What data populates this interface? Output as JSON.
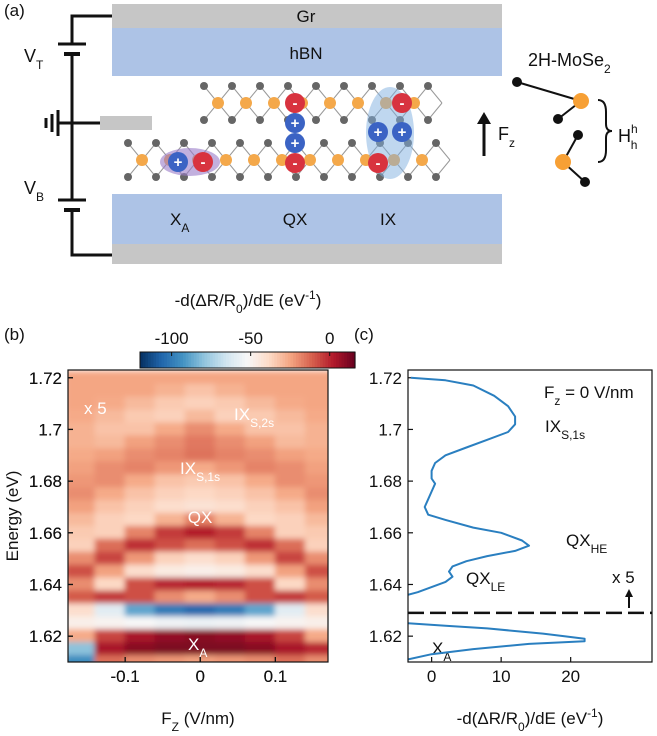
{
  "panel_a": {
    "label": "(a)",
    "top_layer": "Gr",
    "top_dielectric": "hBN",
    "top_gate": {
      "main": "V",
      "sub": "T"
    },
    "bottom_gate": {
      "main": "V",
      "sub": "B"
    },
    "excitons": [
      {
        "main": "X",
        "sub": "A"
      },
      {
        "main": "QX"
      },
      {
        "main": "IX"
      }
    ],
    "charges": {
      "plus": "+",
      "minus": "-"
    },
    "field": {
      "main": "F",
      "sub": "z"
    },
    "material": {
      "main": "2H-MoSe",
      "sub": "2"
    },
    "stacking": {
      "main": "H",
      "sup": "h",
      "sub": "h"
    }
  },
  "chart_data": [
    {
      "type": "heatmap",
      "label": "(b)",
      "x": [
        -0.16,
        -0.12,
        -0.08,
        -0.04,
        0,
        0.04,
        0.08,
        0.12,
        0.16
      ],
      "y": [
        1.72,
        1.715,
        1.71,
        1.705,
        1.7,
        1.695,
        1.69,
        1.685,
        1.68,
        1.675,
        1.67,
        1.665,
        1.66,
        1.655,
        1.65,
        1.645,
        1.64,
        1.635,
        1.63,
        1.625,
        1.62,
        1.615,
        1.61
      ],
      "values": [
        [
          -25,
          -25,
          -25,
          -25,
          -25,
          -25,
          -25,
          -25,
          -25
        ],
        [
          -25,
          -25,
          -25,
          -28,
          -32,
          -28,
          -25,
          -25,
          -25
        ],
        [
          -25,
          -26,
          -30,
          -34,
          -36,
          -34,
          -30,
          -26,
          -25
        ],
        [
          -26,
          -30,
          -34,
          -36,
          -30,
          -36,
          -34,
          -30,
          -26
        ],
        [
          -28,
          -32,
          -32,
          -26,
          -20,
          -26,
          -32,
          -32,
          -28
        ],
        [
          -28,
          -30,
          -24,
          -20,
          -16,
          -20,
          -24,
          -30,
          -28
        ],
        [
          -26,
          -24,
          -20,
          -18,
          -15,
          -18,
          -20,
          -24,
          -26
        ],
        [
          -24,
          -20,
          -18,
          -22,
          -26,
          -22,
          -18,
          -20,
          -24
        ],
        [
          -22,
          -20,
          -26,
          -32,
          -34,
          -32,
          -26,
          -20,
          -22
        ],
        [
          -20,
          -26,
          -32,
          -36,
          -38,
          -36,
          -32,
          -26,
          -20
        ],
        [
          -24,
          -32,
          -36,
          -40,
          -42,
          -40,
          -36,
          -32,
          -24
        ],
        [
          -30,
          -36,
          -38,
          -28,
          -18,
          -28,
          -38,
          -36,
          -30
        ],
        [
          -34,
          -36,
          -18,
          -4,
          2,
          -4,
          -18,
          -36,
          -34
        ],
        [
          -36,
          -14,
          -2,
          -8,
          -14,
          -8,
          -2,
          -14,
          -36
        ],
        [
          -20,
          -6,
          -22,
          -36,
          -40,
          -36,
          -22,
          -6,
          -20
        ],
        [
          -8,
          -24,
          -40,
          -46,
          -48,
          -46,
          -40,
          -24,
          -8
        ],
        [
          -20,
          -38,
          -8,
          0,
          2,
          0,
          -8,
          -38,
          -20
        ],
        [
          -10,
          -4,
          -8,
          -20,
          -26,
          -20,
          -8,
          -4,
          -10
        ],
        [
          -40,
          -60,
          -88,
          -100,
          -105,
          -100,
          -88,
          -60,
          -40
        ],
        [
          -48,
          -50,
          -52,
          -55,
          -56,
          -55,
          -52,
          -50,
          -48
        ],
        [
          -26,
          -6,
          4,
          8,
          10,
          8,
          4,
          -6,
          -26
        ],
        [
          -80,
          4,
          10,
          12,
          12,
          12,
          10,
          4,
          0
        ],
        [
          -95,
          -14,
          -20,
          -22,
          -24,
          -22,
          -20,
          -14,
          -20
        ]
      ],
      "xlim": [
        -0.176,
        0.17
      ],
      "ylim": [
        1.61,
        1.723
      ],
      "xticks": [
        -0.1,
        0,
        0.1
      ],
      "yticks": [
        1.62,
        1.64,
        1.66,
        1.68,
        1.7,
        1.72
      ],
      "xlabel": {
        "main": "F",
        "sub": "Z",
        "rest": " (V/nm)"
      },
      "ylabel": "Energy (eV)",
      "colorbar": {
        "label": [
          "-d(ΔR/R",
          {
            "sub": "0"
          },
          ")/dE (eV",
          {
            "sup": "-1"
          },
          ")"
        ],
        "lim": [
          -120,
          16
        ],
        "ticks": [
          -100,
          -50,
          0
        ],
        "colors": [
          "#053061",
          "#2166ac",
          "#4393c3",
          "#92c5de",
          "#d1e5f0",
          "#f7f7f7",
          "#fddbc7",
          "#f4a582",
          "#d6604d",
          "#b2182b",
          "#67001f"
        ]
      },
      "annotation_color": "#ffffff",
      "annotations": [
        {
          "main": "x 5"
        },
        {
          "main": "IX",
          "sub": "S,2s"
        },
        {
          "main": "IX",
          "sub": "S,1s"
        },
        {
          "main": "QX"
        },
        {
          "main": "X",
          "sub": "A"
        }
      ]
    },
    {
      "type": "line",
      "label": "(c)",
      "series": [
        {
          "color": "#2a7fc0",
          "y": [
            1.72,
            1.719,
            1.717,
            1.713,
            1.709,
            1.705,
            1.702,
            1.699,
            1.696,
            1.693,
            1.69,
            1.687,
            1.684,
            1.681,
            1.679,
            1.676,
            1.673,
            1.67,
            1.667,
            1.665,
            1.662,
            1.66,
            1.657,
            1.655,
            1.653,
            1.651,
            1.649,
            1.647,
            1.645,
            1.643,
            1.641,
            1.639,
            1.637,
            1.636
          ],
          "x": [
            -3,
            2,
            6,
            9,
            11,
            12,
            12,
            11,
            8,
            5,
            2,
            0.5,
            0,
            0,
            0.5,
            0,
            -0.5,
            -1,
            -0.5,
            2,
            6,
            10,
            13,
            14,
            12,
            8,
            5,
            3,
            2.5,
            3,
            2,
            0,
            -2,
            -3.4
          ]
        },
        {
          "color": "#2a7fc0",
          "y": [
            1.625,
            1.624,
            1.623,
            1.621,
            1.619,
            1.618,
            1.617,
            1.615,
            1.613,
            1.611
          ],
          "x": [
            -3.4,
            2,
            8,
            16,
            22,
            22,
            14,
            6,
            0,
            -3.4
          ]
        }
      ],
      "separator": 1.629,
      "xlim": [
        -3.4,
        31.7
      ],
      "ylim": [
        1.61,
        1.723
      ],
      "xticks": [
        0,
        10,
        20
      ],
      "yticks": [
        1.62,
        1.64,
        1.66,
        1.68,
        1.7,
        1.72
      ],
      "xlabel": [
        "-d(ΔR/R",
        {
          "sub": "0"
        },
        ")/dE (eV",
        {
          "sup": "-1"
        },
        ")"
      ],
      "annotations": [
        {
          "main": "F",
          "sub": "z",
          "rest": " = 0 V/nm"
        },
        {
          "main": "IX",
          "sub": "S,1s"
        },
        {
          "main": "QX",
          "sub": "HE"
        },
        {
          "main": "QX",
          "sub": "LE"
        },
        {
          "main": "x 5"
        },
        {
          "main": "X",
          "sub": "A"
        }
      ]
    }
  ]
}
